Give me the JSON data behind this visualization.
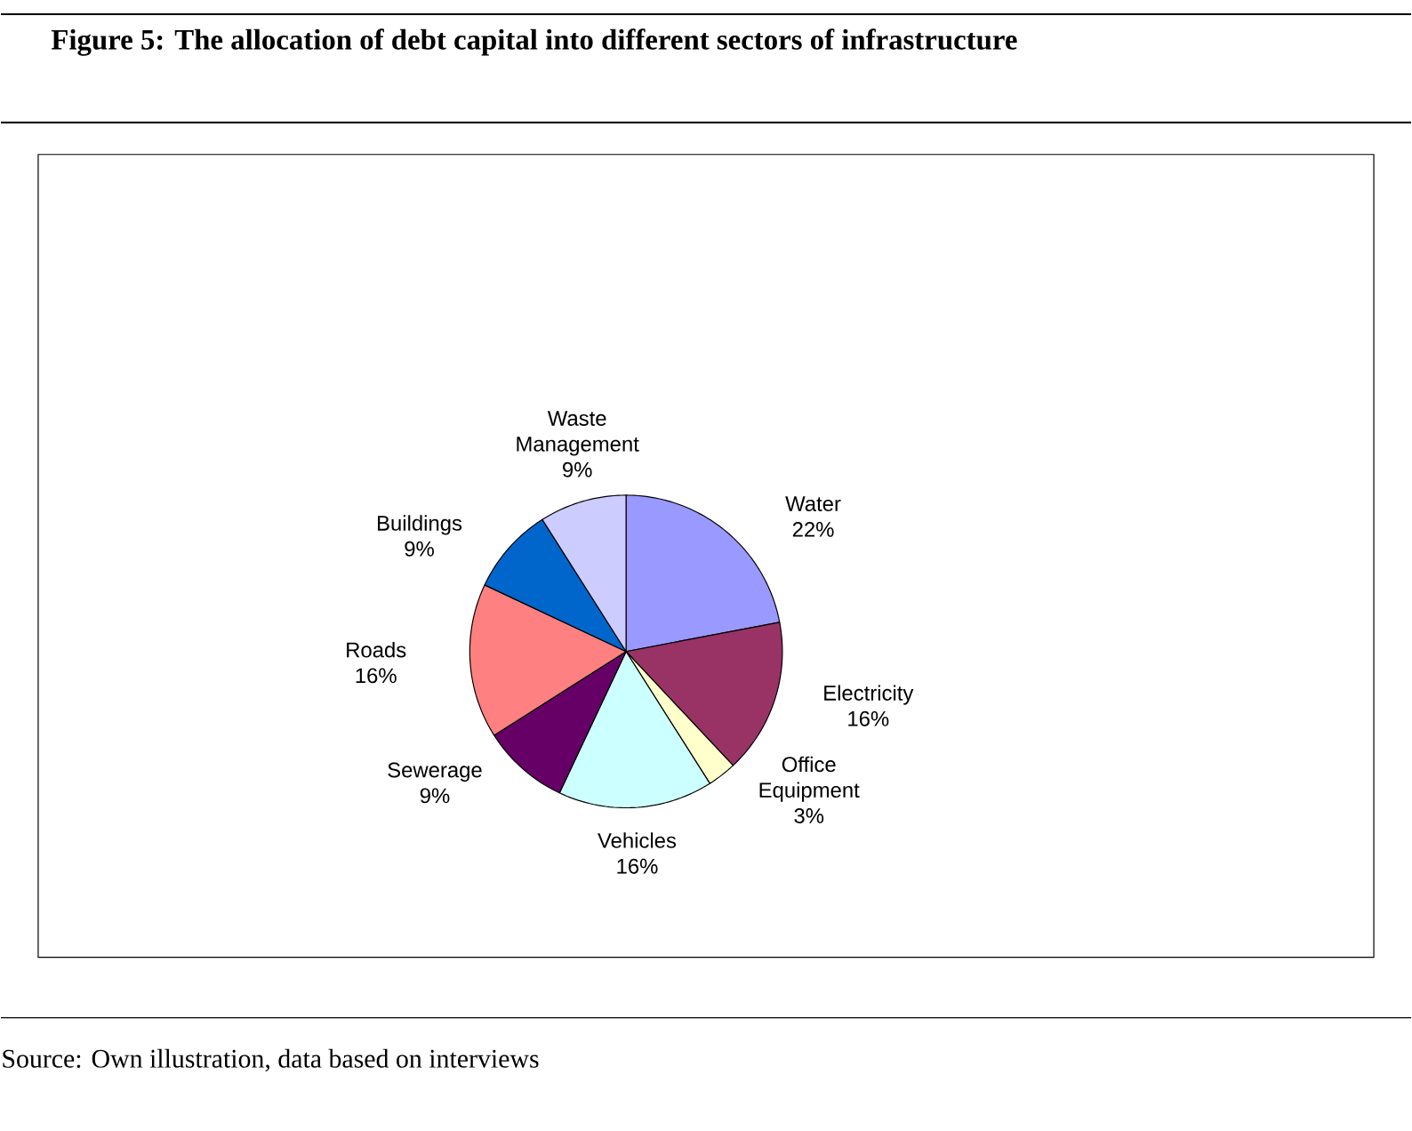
{
  "chart_data": {
    "type": "pie",
    "title": "Figure 5: The allocation of debt capital into different sectors of infrastructure",
    "categories": [
      "Water",
      "Electricity",
      "Office Equipment",
      "Vehicles",
      "Sewerage",
      "Roads",
      "Buildings",
      "Waste Management"
    ],
    "values": [
      22,
      16,
      3,
      16,
      9,
      16,
      9,
      9
    ],
    "colors": [
      "#9999ff",
      "#993366",
      "#ffffcc",
      "#ccffff",
      "#660066",
      "#ff8080",
      "#0066cc",
      "#ccccff"
    ],
    "value_labels": [
      "22%",
      "16%",
      "3%",
      "16%",
      "9%",
      "16%",
      "9%",
      "9%"
    ],
    "annotations": [
      "Source: Own illustration, data based on interviews"
    ]
  }
}
